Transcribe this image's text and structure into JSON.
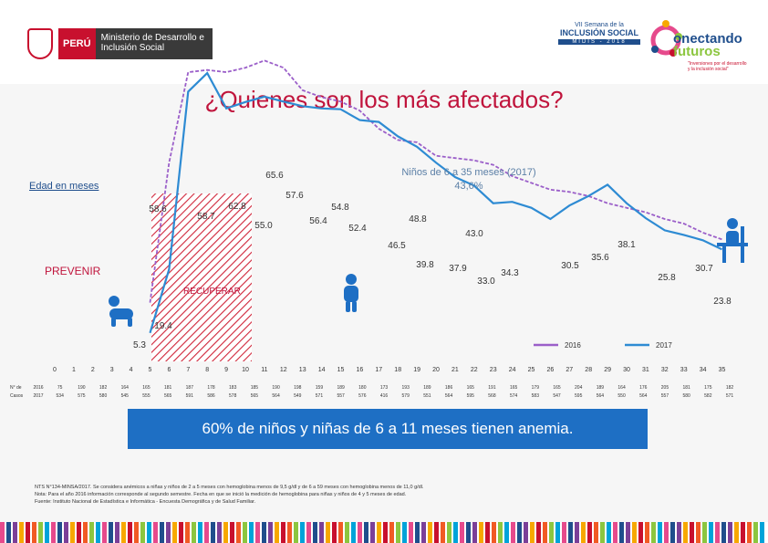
{
  "header": {
    "peru": "PERÚ",
    "ministerio": "Ministerio de Desarrollo e Inclusión Social",
    "semana_small": "VII Semana de la",
    "semana_big": "INCLUSIÓN SOCIAL",
    "semana_years": "MIDIS - 2018",
    "brand1": "onectando",
    "brand2": "futuros",
    "brand_tag": "\"Inversiones por el desarrollo y la inclusión social\""
  },
  "labels": {
    "edad": "Edad en meses",
    "prevenir": "PREVENIR",
    "recuperar": "RECUPERAR",
    "ninos_title": "Niños de 6 a 35 meses (2017)",
    "ninos_value": "43,6%",
    "row_label_n": "N° de",
    "row_label_casos": "Casos"
  },
  "chart_data": {
    "title": "¿Quienes son los más afectados?",
    "type": "line",
    "xlabel": "Edad en meses",
    "ylabel": "",
    "x": [
      0,
      1,
      2,
      3,
      4,
      5,
      6,
      7,
      8,
      9,
      10,
      11,
      12,
      13,
      14,
      15,
      16,
      17,
      18,
      19,
      20,
      21,
      22,
      23,
      24,
      25,
      26,
      27,
      28,
      29,
      30,
      31,
      32,
      33,
      34,
      35
    ],
    "ylim": [
      0,
      70
    ],
    "series": [
      {
        "name": "2016",
        "color": "#9b5fc9",
        "values": [
          null,
          null,
          null,
          null,
          null,
          12.0,
          43.0,
          63.0,
          63.5,
          63.0,
          64.0,
          65.6,
          64.0,
          59.0,
          57.5,
          56.5,
          54.5,
          50.5,
          48.0,
          47.5,
          44.5,
          44.0,
          43.5,
          42.5,
          40.0,
          38.5,
          37.0,
          36.5,
          35.6,
          34.0,
          33.0,
          32.0,
          30.5,
          29.5,
          27.5,
          26.0
        ]
      },
      {
        "name": "2017",
        "color": "#2e8bd3",
        "values": [
          null,
          null,
          null,
          null,
          null,
          5.3,
          19.4,
          58.7,
          62.8,
          55.0,
          56.4,
          57.6,
          56.5,
          55.5,
          55.0,
          54.8,
          52.4,
          52.0,
          48.8,
          46.5,
          43.0,
          39.8,
          37.9,
          34.0,
          34.3,
          33.0,
          30.5,
          33.5,
          35.6,
          38.1,
          34.0,
          30.7,
          28.0,
          27.0,
          25.8,
          23.8
        ]
      }
    ],
    "data_labels": [
      "65.6",
      "57.6",
      "58.6",
      "58.7",
      "62.8",
      "55.0",
      "56.4",
      "54.8",
      "52.4",
      "48.8",
      "46.5",
      "43.0",
      "39.8",
      "37.9",
      "33.0",
      "34.3",
      "30.5",
      "35.6",
      "38.1",
      "25.8",
      "30.7",
      "23.8",
      "19.4",
      "5.3"
    ],
    "age_ticks": [
      "0",
      "1",
      "2",
      "3",
      "4",
      "5",
      "6",
      "7",
      "8",
      "9",
      "10",
      "11",
      "12",
      "13",
      "14",
      "15",
      "16",
      "17",
      "18",
      "19",
      "20",
      "21",
      "22",
      "23",
      "24",
      "25",
      "26",
      "27",
      "28",
      "29",
      "30",
      "31",
      "32",
      "33",
      "34",
      "35"
    ],
    "cases_2016": [
      "2016",
      "75",
      "190",
      "182",
      "164",
      "165",
      "181",
      "187",
      "178",
      "183",
      "185",
      "190",
      "198",
      "159",
      "189",
      "180",
      "173",
      "193",
      "189",
      "186",
      "165",
      "191",
      "165",
      "179",
      "165",
      "204",
      "189",
      "164",
      "176",
      "205",
      "181",
      "175",
      "182"
    ],
    "cases_2017": [
      "2017",
      "534",
      "575",
      "580",
      "545",
      "555",
      "565",
      "591",
      "586",
      "578",
      "565",
      "564",
      "549",
      "571",
      "557",
      "576",
      "416",
      "579",
      "551",
      "564",
      "595",
      "568",
      "574",
      "583",
      "547",
      "595",
      "564",
      "550",
      "564",
      "557",
      "580",
      "582",
      "571"
    ],
    "legend": [
      "2016",
      "2017"
    ]
  },
  "banner": "60% de niños y niñas de 6 a 11 meses tienen anemia.",
  "notes": [
    "NTS N°134-MINSA/2017. Se considera anémicos a niñas y niños de 2 a 5 meses con hemoglobina menos de 9,5 g/dl y de 6 a 59 meses con hemoglobina menos de 11,0 g/dl.",
    "Nota: Para el año 2016 información corresponde al segundo semestre. Fecha en que se inició la medición de hemoglobina para niñas y niños de 4 y 5 meses de edad.",
    "Fuente: Instituto Nacional de Estadística e Informática - Encuesta Demográfica y de Salud Familiar."
  ],
  "colors": {
    "accent": "#c0143c",
    "blue": "#1e6fc4",
    "purple": "#9b5fc9",
    "line2017": "#2e8bd3"
  }
}
